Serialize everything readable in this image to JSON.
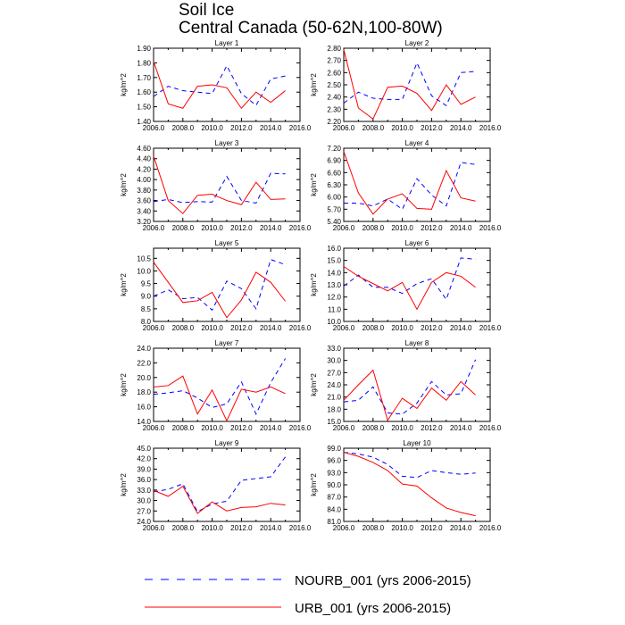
{
  "title": [
    "Soil Ice",
    "Central Canada (50-62N,100-80W)"
  ],
  "colors": {
    "nourb": "#0000ff",
    "urb": "#ff0000",
    "axis": "#000000"
  },
  "legend": [
    {
      "label": "NOURB_001 (yrs 2006-2015)",
      "color": "#0000ff",
      "style": "dashed"
    },
    {
      "label": "URB_001 (yrs 2006-2015)",
      "color": "#ff0000",
      "style": "solid"
    }
  ],
  "chart_data": [
    {
      "type": "line",
      "title": "Layer 1",
      "ylabel": "kg/m^2",
      "xlim": [
        2006,
        2016
      ],
      "ylim": [
        1.4,
        1.9
      ],
      "xticks": [
        "2006.0",
        "2008.0",
        "2010.0",
        "2012.0",
        "2014.0",
        "2016.0"
      ],
      "yticks": [
        "1.40",
        "1.50",
        "1.60",
        "1.70",
        "1.80",
        "1.90"
      ],
      "x": [
        2006,
        2007,
        2008,
        2009,
        2010,
        2011,
        2012,
        2013,
        2014,
        2015
      ],
      "series": [
        {
          "values": [
            1.57,
            1.64,
            1.61,
            1.6,
            1.59,
            1.78,
            1.59,
            1.51,
            1.69,
            1.71
          ]
        },
        {
          "values": [
            1.81,
            1.52,
            1.49,
            1.64,
            1.65,
            1.63,
            1.49,
            1.6,
            1.53,
            1.61
          ]
        }
      ]
    },
    {
      "type": "line",
      "title": "Layer 2",
      "ylabel": "kg/m^2",
      "xlim": [
        2006,
        2016
      ],
      "ylim": [
        2.2,
        2.8
      ],
      "xticks": [
        "2006.0",
        "2008.0",
        "2010.0",
        "2012.0",
        "2014.0",
        "2016.0"
      ],
      "yticks": [
        "2.20",
        "2.30",
        "2.40",
        "2.50",
        "2.60",
        "2.70",
        "2.80"
      ],
      "x": [
        2006,
        2007,
        2008,
        2009,
        2010,
        2011,
        2012,
        2013,
        2014,
        2015
      ],
      "series": [
        {
          "values": [
            2.35,
            2.44,
            2.39,
            2.38,
            2.38,
            2.68,
            2.41,
            2.33,
            2.6,
            2.61
          ]
        },
        {
          "values": [
            2.79,
            2.31,
            2.22,
            2.48,
            2.49,
            2.43,
            2.29,
            2.5,
            2.34,
            2.4
          ]
        }
      ]
    },
    {
      "type": "line",
      "title": "Layer 3",
      "ylabel": "kg/m^2",
      "xlim": [
        2006,
        2016
      ],
      "ylim": [
        3.2,
        4.6
      ],
      "xticks": [
        "2006.0",
        "2008.0",
        "2010.0",
        "2012.0",
        "2014.0",
        "2016.0"
      ],
      "yticks": [
        "3.20",
        "3.40",
        "3.60",
        "3.80",
        "4.00",
        "4.20",
        "4.40",
        "4.60"
      ],
      "x": [
        2006,
        2007,
        2008,
        2009,
        2010,
        2011,
        2012,
        2013,
        2014,
        2015
      ],
      "series": [
        {
          "values": [
            3.58,
            3.62,
            3.56,
            3.58,
            3.57,
            4.06,
            3.6,
            3.55,
            4.12,
            4.11
          ]
        },
        {
          "values": [
            4.45,
            3.6,
            3.35,
            3.7,
            3.72,
            3.6,
            3.52,
            3.95,
            3.62,
            3.63
          ]
        }
      ]
    },
    {
      "type": "line",
      "title": "Layer 4",
      "ylabel": "kg/m^2",
      "xlim": [
        2006,
        2016
      ],
      "ylim": [
        5.4,
        7.2
      ],
      "xticks": [
        "2006.0",
        "2008.0",
        "2010.0",
        "2012.0",
        "2014.0",
        "2016.0"
      ],
      "yticks": [
        "5.40",
        "5.70",
        "6.00",
        "6.30",
        "6.60",
        "6.90",
        "7.20"
      ],
      "x": [
        2006,
        2007,
        2008,
        2009,
        2010,
        2011,
        2012,
        2013,
        2014,
        2015
      ],
      "series": [
        {
          "values": [
            5.85,
            5.85,
            5.78,
            5.95,
            5.7,
            6.45,
            6.05,
            5.78,
            6.85,
            6.8
          ]
        },
        {
          "values": [
            7.12,
            6.1,
            5.58,
            5.95,
            6.08,
            5.72,
            5.7,
            6.65,
            5.98,
            5.9
          ]
        }
      ]
    },
    {
      "type": "line",
      "title": "Layer 5",
      "ylabel": "kg/m^2",
      "xlim": [
        2006,
        2016
      ],
      "ylim": [
        8.0,
        10.9
      ],
      "xticks": [
        "2006.0",
        "2008.0",
        "2010.0",
        "2012.0",
        "2014.0",
        "2016.0"
      ],
      "yticks": [
        "8.0",
        "8.5",
        "9.0",
        "9.5",
        "10.0",
        "10.5"
      ],
      "x": [
        2006,
        2007,
        2008,
        2009,
        2010,
        2011,
        2012,
        2013,
        2014,
        2015
      ],
      "series": [
        {
          "values": [
            9.0,
            9.25,
            8.9,
            8.95,
            8.45,
            9.6,
            9.3,
            8.5,
            10.45,
            10.25
          ]
        },
        {
          "values": [
            10.35,
            9.55,
            8.75,
            8.82,
            9.15,
            8.15,
            8.85,
            9.95,
            9.55,
            8.8
          ]
        }
      ]
    },
    {
      "type": "line",
      "title": "Layer 6",
      "ylabel": "kg/m^2",
      "xlim": [
        2006,
        2016
      ],
      "ylim": [
        10.0,
        16.0
      ],
      "xticks": [
        "2006.0",
        "2008.0",
        "2010.0",
        "2012.0",
        "2014.0",
        "2016.0"
      ],
      "yticks": [
        "10.0",
        "11.0",
        "12.0",
        "13.0",
        "14.0",
        "15.0",
        "16.0"
      ],
      "x": [
        2006,
        2007,
        2008,
        2009,
        2010,
        2011,
        2012,
        2013,
        2014,
        2015
      ],
      "series": [
        {
          "values": [
            12.9,
            13.8,
            12.8,
            12.8,
            12.3,
            13.1,
            13.5,
            11.8,
            15.2,
            15.1
          ]
        },
        {
          "values": [
            14.5,
            13.7,
            13.1,
            12.5,
            13.2,
            11.0,
            13.2,
            14.0,
            13.7,
            12.8
          ]
        }
      ]
    },
    {
      "type": "line",
      "title": "Layer 7",
      "ylabel": "kg/m^2",
      "xlim": [
        2006,
        2016
      ],
      "ylim": [
        14.0,
        24.0
      ],
      "xticks": [
        "2006.0",
        "2008.0",
        "2010.0",
        "2012.0",
        "2014.0",
        "2016.0"
      ],
      "yticks": [
        "14.0",
        "16.0",
        "18.0",
        "20.0",
        "22.0",
        "24.0"
      ],
      "x": [
        2006,
        2007,
        2008,
        2009,
        2010,
        2011,
        2012,
        2013,
        2014,
        2015
      ],
      "series": [
        {
          "values": [
            17.7,
            17.9,
            18.2,
            17.2,
            15.9,
            16.4,
            19.4,
            15.0,
            19.3,
            22.6
          ]
        },
        {
          "values": [
            18.7,
            18.9,
            20.2,
            15.0,
            18.3,
            14.1,
            18.4,
            18.0,
            18.7,
            17.8
          ]
        }
      ]
    },
    {
      "type": "line",
      "title": "Layer 8",
      "ylabel": "kg/m^2",
      "xlim": [
        2006,
        2016
      ],
      "ylim": [
        15.0,
        33.0
      ],
      "xticks": [
        "2006.0",
        "2008.0",
        "2010.0",
        "2012.0",
        "2014.0",
        "2016.0"
      ],
      "yticks": [
        "15.0",
        "18.0",
        "21.0",
        "24.0",
        "27.0",
        "30.0",
        "33.0"
      ],
      "x": [
        2006,
        2007,
        2008,
        2009,
        2010,
        2011,
        2012,
        2013,
        2014,
        2015
      ],
      "series": [
        {
          "values": [
            19.8,
            20.2,
            23.5,
            17.1,
            16.8,
            19.5,
            24.8,
            21.5,
            21.8,
            30.2
          ]
        },
        {
          "values": [
            20.2,
            24.0,
            27.6,
            15.3,
            20.7,
            18.2,
            23.2,
            20.2,
            24.8,
            21.5
          ]
        }
      ]
    },
    {
      "type": "line",
      "title": "Layer 9",
      "ylabel": "kg/m^2",
      "xlim": [
        2006,
        2016
      ],
      "ylim": [
        24.0,
        45.0
      ],
      "xticks": [
        "2006.0",
        "2008.0",
        "2010.0",
        "2012.0",
        "2014.0",
        "2016.0"
      ],
      "yticks": [
        "24.0",
        "27.0",
        "30.0",
        "33.0",
        "36.0",
        "39.0",
        "42.0",
        "45.0"
      ],
      "x": [
        2006,
        2007,
        2008,
        2009,
        2010,
        2011,
        2012,
        2013,
        2014,
        2015
      ],
      "series": [
        {
          "values": [
            32.5,
            33.2,
            34.8,
            26.8,
            29.0,
            29.8,
            35.8,
            36.3,
            36.8,
            42.5
          ]
        },
        {
          "values": [
            32.9,
            31.2,
            34.1,
            26.3,
            29.6,
            27.0,
            28.0,
            28.2,
            29.2,
            28.7
          ]
        }
      ]
    },
    {
      "type": "line",
      "title": "Layer 10",
      "ylabel": "kg/m^2",
      "xlim": [
        2006,
        2016
      ],
      "ylim": [
        81.0,
        99.0
      ],
      "xticks": [
        "2006.0",
        "2008.0",
        "2010.0",
        "2012.0",
        "2014.0",
        "2016.0"
      ],
      "yticks": [
        "81.0",
        "84.0",
        "87.0",
        "90.0",
        "93.0",
        "96.0",
        "99.0"
      ],
      "x": [
        2006,
        2007,
        2008,
        2009,
        2010,
        2011,
        2012,
        2013,
        2014,
        2015
      ],
      "series": [
        {
          "values": [
            98.0,
            97.6,
            96.8,
            95.0,
            92.1,
            91.8,
            93.5,
            93.0,
            92.6,
            92.9
          ]
        },
        {
          "values": [
            98.0,
            97.0,
            95.5,
            93.5,
            90.2,
            89.7,
            86.8,
            84.3,
            83.2,
            82.4
          ]
        }
      ]
    }
  ]
}
